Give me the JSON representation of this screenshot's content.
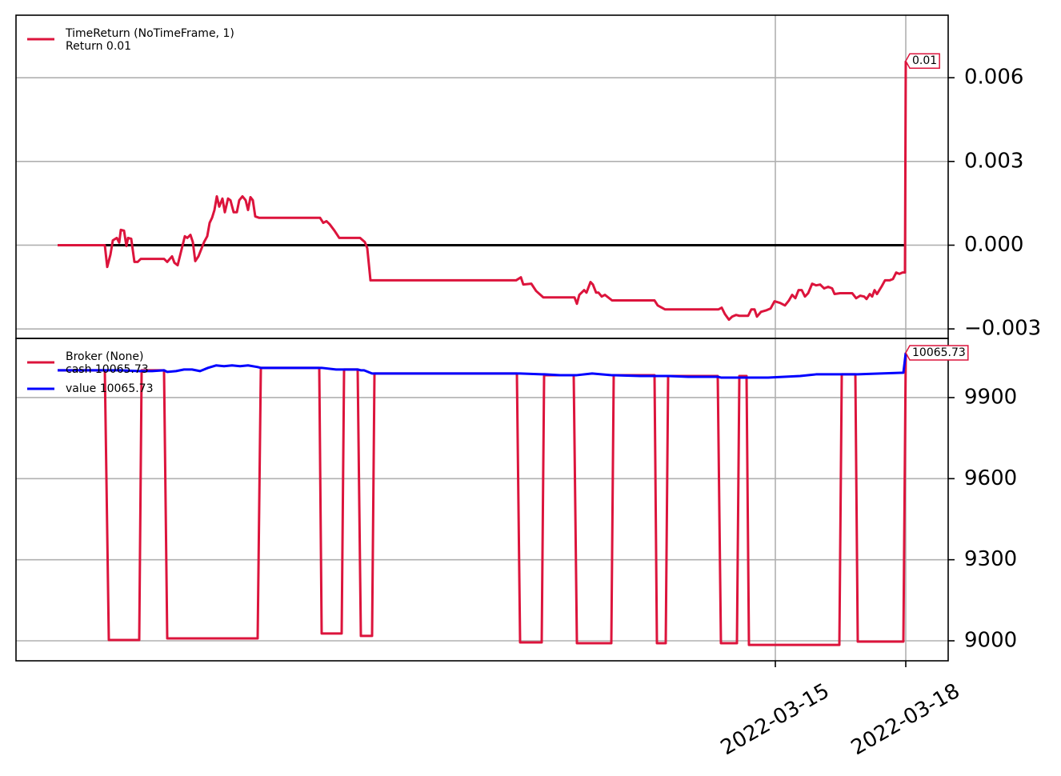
{
  "chart_data": [
    {
      "type": "line",
      "legend_title": "TimeReturn (NoTimeFrame, 1)",
      "hline": 0,
      "grid": true,
      "yticks": [
        {
          "value": -0.003,
          "label": "−0.003"
        },
        {
          "value": 0,
          "label": "0.000"
        },
        0.003,
        0.006
      ],
      "ylim": [
        -0.00334,
        0.00824
      ],
      "x": [
        0,
        29.5,
        31,
        33,
        34.5,
        37,
        38.5,
        39.5,
        41.5,
        43,
        44,
        46,
        48,
        50,
        52,
        66.5,
        68.5,
        71.5,
        73,
        75,
        77,
        79.5,
        81,
        83,
        84.5,
        86,
        88,
        91.5,
        93.5,
        95,
        96.5,
        98,
        99.5,
        101,
        103,
        104.5,
        106.5,
        108,
        110,
        112,
        113.5,
        115.5,
        117.5,
        119,
        120.5,
        122,
        123.5,
        126,
        164,
        166,
        168,
        170,
        173,
        176,
        189,
        192,
        193.5,
        195.5,
        286.5,
        289.5,
        291,
        296,
        299,
        303.5,
        323,
        324.5,
        326,
        329,
        330.5,
        333,
        334.5,
        336.5,
        338,
        340,
        342,
        346.5,
        373,
        375,
        379.5,
        413,
        415,
        417,
        419.5,
        421.5,
        424,
        426,
        431.5,
        433.5,
        435.5,
        437,
        439.5,
        443,
        445.5,
        448,
        451.5,
        454.5,
        457,
        459,
        461,
        463,
        465,
        467,
        469,
        471.5,
        474,
        476.5,
        479,
        481.5,
        484,
        485.5,
        489,
        496.5,
        499,
        501.5,
        504,
        505.5,
        507.5,
        509,
        510.5,
        512,
        515,
        517,
        520,
        522,
        524,
        526,
        528,
        529.5,
        530
      ],
      "series": [
        {
          "name": "Return 0.01",
          "color": "#dc143c",
          "last_value_label": "0.01",
          "values": [
            0,
            0,
            -0.00078,
            -0.00034,
            0.00017,
            0.00026,
            9e-05,
            0.00055,
            0.00052,
            -3e-05,
            0.00026,
            0.00023,
            -0.0006,
            -0.0006,
            -0.00049,
            -0.00049,
            -0.0006,
            -0.0004,
            -0.00063,
            -0.00072,
            -0.00026,
            0.00032,
            0.00026,
            0.00037,
            0.00011,
            -0.00057,
            -0.0004,
            0.00011,
            0.00032,
            0.0008,
            0.00098,
            0.00126,
            0.00175,
            0.00138,
            0.00167,
            0.00118,
            0.00167,
            0.00161,
            0.00118,
            0.00118,
            0.00161,
            0.00175,
            0.00161,
            0.00126,
            0.00172,
            0.00161,
            0.00103,
            0.00098,
            0.00098,
            0.0008,
            0.00086,
            0.00075,
            0.00052,
            0.00026,
            0.00026,
            0.00011,
            -0.00011,
            -0.00126,
            -0.00126,
            -0.00115,
            -0.00141,
            -0.00138,
            -0.00164,
            -0.00187,
            -0.00187,
            -0.0021,
            -0.00178,
            -0.00161,
            -0.0017,
            -0.00132,
            -0.00141,
            -0.0017,
            -0.0017,
            -0.00184,
            -0.00178,
            -0.00198,
            -0.00198,
            -0.00216,
            -0.0023,
            -0.0023,
            -0.00224,
            -0.00247,
            -0.00267,
            -0.00256,
            -0.0025,
            -0.00253,
            -0.00253,
            -0.0023,
            -0.0023,
            -0.00256,
            -0.00239,
            -0.00233,
            -0.00227,
            -0.00201,
            -0.00207,
            -0.00216,
            -0.00198,
            -0.00178,
            -0.0019,
            -0.00161,
            -0.00161,
            -0.00184,
            -0.00172,
            -0.00138,
            -0.00144,
            -0.00141,
            -0.00155,
            -0.00149,
            -0.00155,
            -0.00175,
            -0.00172,
            -0.00172,
            -0.0019,
            -0.00181,
            -0.00184,
            -0.00193,
            -0.00175,
            -0.00184,
            -0.00161,
            -0.00175,
            -0.00147,
            -0.00126,
            -0.00126,
            -0.00121,
            -0.00098,
            -0.00103,
            -0.00098,
            -0.00098,
            0.0066
          ]
        }
      ]
    },
    {
      "type": "line",
      "legend_title": "Broker (None)",
      "grid": true,
      "yticks": [
        9000,
        9300,
        9600,
        9900
      ],
      "ylim": [
        8926,
        10119
      ],
      "xlim": [
        -26,
        556.5
      ],
      "xticks": [
        {
          "value": 448.5,
          "label": "2022-03-15"
        },
        {
          "value": 530,
          "label": "2022-03-18"
        }
      ],
      "x": [
        0,
        29.5,
        32,
        39,
        51,
        52.5,
        59,
        66.5,
        68.5,
        74,
        79,
        84,
        89,
        94,
        99,
        104,
        109,
        114,
        119,
        125,
        127,
        134,
        163.5,
        165,
        174,
        177.5,
        179,
        184,
        187.5,
        189.5,
        191.5,
        196.5,
        198,
        287,
        289,
        302.5,
        304,
        314,
        322.5,
        324.5,
        334,
        346,
        347.5,
        364,
        373,
        374.5,
        380,
        381.5,
        394,
        412.5,
        414.5,
        424.5,
        426,
        430.5,
        432,
        444,
        464,
        474,
        488.5,
        490,
        498.5,
        500,
        514,
        528.5,
        530
      ],
      "series": [
        {
          "name": "cash 10065.73",
          "color": "#dc143c",
          "last_value_label": "10065.73",
          "values": [
            10001,
            10001,
            9003,
            9003,
            9003,
            10001,
            10001,
            10001,
            9009,
            9009,
            9009,
            9009,
            9009,
            9009,
            9009,
            9009,
            9009,
            9009,
            9009,
            9009,
            10010,
            10010,
            10010,
            9027,
            9027,
            9027,
            10004,
            10004,
            10004,
            9018,
            9018,
            9018,
            9989,
            9989,
            8994,
            8994,
            9983,
            9983,
            9983,
            8991,
            8991,
            8991,
            9983,
            9983,
            9983,
            8991,
            8991,
            9980,
            9980,
            9980,
            8991,
            8991,
            9980,
            9980,
            8985,
            8985,
            8985,
            8985,
            8985,
            9986,
            9986,
            8997,
            8997,
            8997,
            10065.73
          ]
        },
        {
          "name": "value 10065.73",
          "color": "#0000ff",
          "values": [
            10001,
            10001,
            10001,
            10001,
            9998,
            9998,
            9998,
            10001,
            9995,
            9998,
            10004,
            10004,
            9998,
            10010,
            10019,
            10016,
            10019,
            10016,
            10019,
            10013,
            10010,
            10010,
            10010,
            10010,
            10004,
            10004,
            10004,
            10004,
            10004,
            10001,
            10001,
            9989,
            9989,
            9989,
            9989,
            9986,
            9986,
            9983,
            9983,
            9983,
            9989,
            9983,
            9983,
            9980,
            9980,
            9980,
            9980,
            9980,
            9977,
            9977,
            9974,
            9974,
            9974,
            9974,
            9974,
            9974,
            9980,
            9986,
            9986,
            9986,
            9986,
            9986,
            9989,
            9992,
            10065.73
          ]
        }
      ]
    }
  ]
}
